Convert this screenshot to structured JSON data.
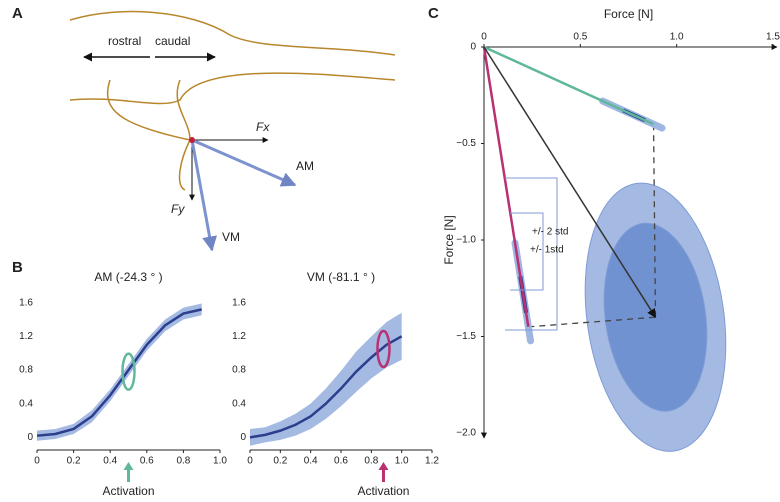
{
  "panel_a": {
    "label": "A",
    "rostral": "rostral",
    "caudal": "caudal",
    "fx": "Fx",
    "fy": "Fy",
    "am": "AM",
    "vm": "VM"
  },
  "chart_data": [
    {
      "type": "line",
      "panel_label": "B",
      "title": "AM (-24.3 ° )",
      "xlabel": "Activation",
      "x": [
        0,
        0.1,
        0.2,
        0.3,
        0.4,
        0.5,
        0.6,
        0.7,
        0.8,
        0.9
      ],
      "series": [
        {
          "color": "#2c3e8c",
          "values": [
            0.02,
            0.04,
            0.1,
            0.25,
            0.5,
            0.8,
            1.1,
            1.33,
            1.47,
            1.52
          ]
        }
      ],
      "band": {
        "color": "#8fa9dc",
        "lower": [
          -0.04,
          -0.02,
          0.04,
          0.18,
          0.43,
          0.73,
          1.03,
          1.26,
          1.4,
          1.45
        ],
        "upper": [
          0.08,
          0.1,
          0.16,
          0.32,
          0.57,
          0.87,
          1.17,
          1.4,
          1.54,
          1.59
        ]
      },
      "highlight": {
        "x": 0.5,
        "y": 0.78,
        "color": "#5fb89b"
      },
      "xlim": [
        0,
        1
      ],
      "ylim": [
        -0.15,
        1.75
      ],
      "xticks": [
        0,
        0.2,
        0.4,
        0.6,
        0.8,
        {
          "value": 1,
          "label": "1.0"
        }
      ],
      "yticks": [
        0,
        0.4,
        0.8,
        1.2,
        1.6
      ]
    },
    {
      "type": "line",
      "title": "VM (-81.1 ° )",
      "xlabel": "Activation",
      "x": [
        0,
        0.1,
        0.2,
        0.3,
        0.4,
        0.5,
        0.6,
        0.7,
        0.8,
        0.9,
        1.0
      ],
      "series": [
        {
          "color": "#2c3e8c",
          "values": [
            0,
            0.03,
            0.08,
            0.15,
            0.25,
            0.4,
            0.58,
            0.78,
            0.95,
            1.1,
            1.2
          ]
        }
      ],
      "band": {
        "color": "#8fa9dc",
        "lower": [
          -0.1,
          -0.06,
          -0.03,
          0.02,
          0.1,
          0.22,
          0.37,
          0.54,
          0.7,
          0.83,
          0.92
        ],
        "upper": [
          0.1,
          0.12,
          0.19,
          0.28,
          0.4,
          0.58,
          0.79,
          1.02,
          1.2,
          1.37,
          1.48
        ]
      },
      "highlight": {
        "x": 0.88,
        "y": 1.05,
        "color": "#b83273"
      },
      "xlim": [
        0,
        1.2
      ],
      "ylim": [
        -0.15,
        1.75
      ],
      "xticks": [
        0,
        0.2,
        0.4,
        0.6,
        0.8,
        {
          "value": 1,
          "label": "1.0"
        },
        1.2
      ],
      "yticks": [
        0,
        0.4,
        0.8,
        1.2,
        1.6
      ]
    },
    {
      "type": "force",
      "panel_label": "C",
      "xlabel": "Force [N]",
      "ylabel": "Force [N]",
      "xlim": [
        0,
        1.5
      ],
      "ylim": [
        -2,
        0
      ],
      "xticks": [
        0,
        0.5,
        {
          "value": 1,
          "label": "1.0"
        },
        1.5
      ],
      "yticks": [
        0,
        {
          "value": -0.5,
          "label": "−0.5"
        },
        {
          "value": -1,
          "label": "−1.0"
        },
        {
          "value": -1.5,
          "label": "−1.5"
        },
        {
          "value": -2,
          "label": "−2.0"
        }
      ],
      "vectors": [
        {
          "color": "#5fb89b",
          "values": [
            0.88,
            -0.4
          ]
        },
        {
          "color": "#b83273",
          "values": [
            0.23,
            -1.45
          ]
        },
        {
          "color": "#333333",
          "values": [
            0.89,
            -1.4
          ]
        }
      ],
      "ellipses": [
        {
          "color": "#9fb6e2",
          "values": [
            0.89,
            -1.4,
            0.355,
            0.7
          ]
        },
        {
          "color": "#6f8fd0",
          "values": [
            0.89,
            -1.4,
            0.26,
            0.49
          ]
        }
      ],
      "annotations": [
        "+/- 2 std",
        "+/- 1std"
      ]
    }
  ]
}
